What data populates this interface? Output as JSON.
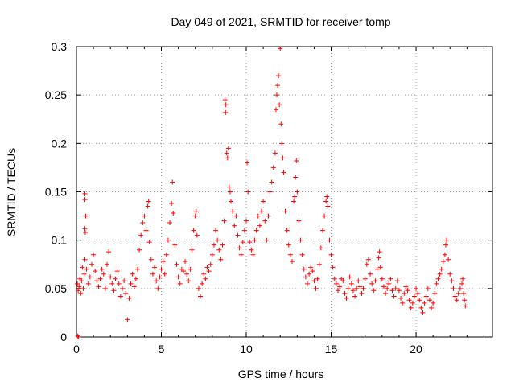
{
  "chart_data": {
    "type": "scatter",
    "title": "Day 049 of 2021, SRMTID for receiver tomp",
    "xlabel": "GPS time / hours",
    "ylabel": "SRMTID / TECUs",
    "xlim": [
      0,
      24.5
    ],
    "ylim": [
      0,
      0.3
    ],
    "x_ticks": [
      0,
      5,
      10,
      15,
      20
    ],
    "x_tick_labels": [
      "0",
      "5",
      "10",
      "15",
      "20"
    ],
    "y_ticks": [
      0,
      0.05,
      0.1,
      0.15,
      0.2,
      0.25,
      0.3
    ],
    "y_tick_labels": [
      "0",
      "0.05",
      "0.1",
      "0.15",
      "0.2",
      "0.25",
      "0.3"
    ],
    "grid": true,
    "marker": "+",
    "color": "#ff0000",
    "series": [
      {
        "name": "SRMTID",
        "points": [
          [
            0.05,
            0.055
          ],
          [
            0.1,
            0.048
          ],
          [
            0.15,
            0.052
          ],
          [
            0.2,
            0.06
          ],
          [
            0.25,
            0.045
          ],
          [
            0.3,
            0.058
          ],
          [
            0.35,
            0.072
          ],
          [
            0.4,
            0.05
          ],
          [
            0.45,
            0.065
          ],
          [
            0.5,
            0.08
          ],
          [
            0.5,
            0.148
          ],
          [
            0.5,
            0.142
          ],
          [
            0.55,
            0.125
          ],
          [
            0.5,
            0.112
          ],
          [
            0.52,
            0.108
          ],
          [
            0.6,
            0.07
          ],
          [
            0.7,
            0.055
          ],
          [
            0.8,
            0.062
          ],
          [
            0.9,
            0.075
          ],
          [
            1.0,
            0.085
          ],
          [
            1.1,
            0.068
          ],
          [
            1.2,
            0.058
          ],
          [
            1.3,
            0.052
          ],
          [
            1.4,
            0.06
          ],
          [
            1.5,
            0.07
          ],
          [
            1.6,
            0.065
          ],
          [
            1.7,
            0.05
          ],
          [
            1.8,
            0.075
          ],
          [
            1.9,
            0.088
          ],
          [
            2.0,
            0.062
          ],
          [
            2.1,
            0.055
          ],
          [
            2.2,
            0.048
          ],
          [
            2.3,
            0.06
          ],
          [
            2.4,
            0.068
          ],
          [
            2.5,
            0.055
          ],
          [
            2.6,
            0.042
          ],
          [
            2.7,
            0.05
          ],
          [
            2.8,
            0.058
          ],
          [
            2.9,
            0.045
          ],
          [
            3.0,
            0.018
          ],
          [
            3.1,
            0.04
          ],
          [
            3.2,
            0.055
          ],
          [
            3.3,
            0.065
          ],
          [
            3.4,
            0.052
          ],
          [
            3.5,
            0.06
          ],
          [
            3.6,
            0.07
          ],
          [
            3.7,
            0.09
          ],
          [
            3.8,
            0.105
          ],
          [
            3.9,
            0.118
          ],
          [
            4.0,
            0.125
          ],
          [
            4.1,
            0.11
          ],
          [
            4.2,
            0.135
          ],
          [
            4.25,
            0.14
          ],
          [
            4.3,
            0.098
          ],
          [
            4.4,
            0.08
          ],
          [
            4.5,
            0.065
          ],
          [
            4.6,
            0.072
          ],
          [
            4.7,
            0.058
          ],
          [
            4.8,
            0.05
          ],
          [
            4.9,
            0.062
          ],
          [
            5.0,
            0.07
          ],
          [
            5.1,
            0.078
          ],
          [
            5.2,
            0.065
          ],
          [
            5.3,
            0.085
          ],
          [
            5.4,
            0.1
          ],
          [
            5.5,
            0.118
          ],
          [
            5.6,
            0.138
          ],
          [
            5.65,
            0.16
          ],
          [
            5.7,
            0.128
          ],
          [
            5.8,
            0.095
          ],
          [
            5.9,
            0.075
          ],
          [
            6.0,
            0.062
          ],
          [
            6.1,
            0.055
          ],
          [
            6.2,
            0.07
          ],
          [
            6.3,
            0.068
          ],
          [
            6.4,
            0.078
          ],
          [
            6.5,
            0.065
          ],
          [
            6.6,
            0.058
          ],
          [
            6.7,
            0.07
          ],
          [
            6.8,
            0.09
          ],
          [
            6.9,
            0.11
          ],
          [
            7.0,
            0.125
          ],
          [
            7.05,
            0.13
          ],
          [
            7.1,
            0.105
          ],
          [
            7.2,
            0.05
          ],
          [
            7.3,
            0.042
          ],
          [
            7.4,
            0.055
          ],
          [
            7.5,
            0.065
          ],
          [
            7.6,
            0.06
          ],
          [
            7.7,
            0.072
          ],
          [
            7.8,
            0.068
          ],
          [
            7.9,
            0.075
          ],
          [
            8.0,
            0.085
          ],
          [
            8.1,
            0.095
          ],
          [
            8.2,
            0.11
          ],
          [
            8.3,
            0.1
          ],
          [
            8.4,
            0.09
          ],
          [
            8.5,
            0.08
          ],
          [
            8.6,
            0.095
          ],
          [
            8.7,
            0.12
          ],
          [
            8.75,
            0.245
          ],
          [
            8.78,
            0.232
          ],
          [
            8.8,
            0.24
          ],
          [
            8.85,
            0.19
          ],
          [
            8.9,
            0.185
          ],
          [
            8.95,
            0.195
          ],
          [
            9.0,
            0.155
          ],
          [
            9.05,
            0.15
          ],
          [
            9.1,
            0.14
          ],
          [
            9.2,
            0.13
          ],
          [
            9.3,
            0.115
          ],
          [
            9.4,
            0.125
          ],
          [
            9.5,
            0.105
          ],
          [
            9.6,
            0.092
          ],
          [
            9.7,
            0.085
          ],
          [
            9.8,
            0.098
          ],
          [
            9.9,
            0.11
          ],
          [
            10.0,
            0.12
          ],
          [
            10.05,
            0.18
          ],
          [
            10.1,
            0.15
          ],
          [
            10.2,
            0.098
          ],
          [
            10.3,
            0.09
          ],
          [
            10.4,
            0.085
          ],
          [
            10.5,
            0.1
          ],
          [
            10.6,
            0.11
          ],
          [
            10.7,
            0.125
          ],
          [
            10.8,
            0.115
          ],
          [
            10.9,
            0.13
          ],
          [
            11.0,
            0.14
          ],
          [
            11.1,
            0.12
          ],
          [
            11.2,
            0.1
          ],
          [
            11.3,
            0.125
          ],
          [
            11.4,
            0.15
          ],
          [
            11.5,
            0.16
          ],
          [
            11.6,
            0.175
          ],
          [
            11.7,
            0.19
          ],
          [
            11.75,
            0.235
          ],
          [
            11.8,
            0.25
          ],
          [
            11.85,
            0.26
          ],
          [
            11.9,
            0.27
          ],
          [
            11.95,
            0.24
          ],
          [
            12.0,
            0.298
          ],
          [
            12.05,
            0.22
          ],
          [
            12.1,
            0.2
          ],
          [
            12.15,
            0.185
          ],
          [
            12.2,
            0.17
          ],
          [
            12.3,
            0.13
          ],
          [
            12.4,
            0.11
          ],
          [
            12.5,
            0.095
          ],
          [
            12.6,
            0.085
          ],
          [
            12.7,
            0.078
          ],
          [
            12.8,
            0.14
          ],
          [
            12.85,
            0.145
          ],
          [
            12.9,
            0.165
          ],
          [
            12.95,
            0.182
          ],
          [
            13.0,
            0.15
          ],
          [
            13.1,
            0.12
          ],
          [
            13.2,
            0.1
          ],
          [
            13.3,
            0.085
          ],
          [
            13.4,
            0.07
          ],
          [
            13.5,
            0.062
          ],
          [
            13.6,
            0.055
          ],
          [
            13.7,
            0.065
          ],
          [
            13.8,
            0.072
          ],
          [
            13.9,
            0.068
          ],
          [
            14.0,
            0.058
          ],
          [
            14.1,
            0.05
          ],
          [
            14.2,
            0.06
          ],
          [
            14.3,
            0.075
          ],
          [
            14.4,
            0.092
          ],
          [
            14.5,
            0.11
          ],
          [
            14.6,
            0.125
          ],
          [
            14.7,
            0.14
          ],
          [
            14.75,
            0.145
          ],
          [
            14.8,
            0.135
          ],
          [
            14.9,
            0.1
          ],
          [
            15.0,
            0.085
          ],
          [
            15.1,
            0.072
          ],
          [
            15.2,
            0.06
          ],
          [
            15.3,
            0.055
          ],
          [
            15.4,
            0.048
          ],
          [
            15.5,
            0.052
          ],
          [
            15.6,
            0.06
          ],
          [
            15.7,
            0.058
          ],
          [
            15.8,
            0.045
          ],
          [
            15.9,
            0.04
          ],
          [
            16.0,
            0.05
          ],
          [
            16.1,
            0.062
          ],
          [
            16.2,
            0.055
          ],
          [
            16.3,
            0.048
          ],
          [
            16.4,
            0.042
          ],
          [
            16.5,
            0.05
          ],
          [
            16.6,
            0.058
          ],
          [
            16.7,
            0.052
          ],
          [
            16.8,
            0.045
          ],
          [
            16.9,
            0.05
          ],
          [
            17.0,
            0.06
          ],
          [
            17.1,
            0.075
          ],
          [
            17.2,
            0.08
          ],
          [
            17.3,
            0.065
          ],
          [
            17.4,
            0.055
          ],
          [
            17.5,
            0.048
          ],
          [
            17.6,
            0.058
          ],
          [
            17.7,
            0.07
          ],
          [
            17.8,
            0.082
          ],
          [
            17.85,
            0.088
          ],
          [
            17.9,
            0.072
          ],
          [
            18.0,
            0.06
          ],
          [
            18.1,
            0.052
          ],
          [
            18.2,
            0.045
          ],
          [
            18.3,
            0.05
          ],
          [
            18.4,
            0.055
          ],
          [
            18.5,
            0.06
          ],
          [
            18.6,
            0.048
          ],
          [
            18.7,
            0.042
          ],
          [
            18.8,
            0.05
          ],
          [
            18.9,
            0.058
          ],
          [
            19.0,
            0.048
          ],
          [
            19.1,
            0.04
          ],
          [
            19.2,
            0.035
          ],
          [
            19.3,
            0.045
          ],
          [
            19.4,
            0.052
          ],
          [
            19.5,
            0.048
          ],
          [
            19.6,
            0.038
          ],
          [
            19.7,
            0.03
          ],
          [
            19.8,
            0.035
          ],
          [
            19.9,
            0.042
          ],
          [
            20.0,
            0.05
          ],
          [
            20.1,
            0.045
          ],
          [
            20.2,
            0.038
          ],
          [
            20.3,
            0.03
          ],
          [
            20.4,
            0.025
          ],
          [
            20.5,
            0.035
          ],
          [
            20.6,
            0.042
          ],
          [
            20.7,
            0.05
          ],
          [
            20.8,
            0.038
          ],
          [
            20.9,
            0.03
          ],
          [
            21.0,
            0.035
          ],
          [
            21.1,
            0.045
          ],
          [
            21.2,
            0.055
          ],
          [
            21.3,
            0.06
          ],
          [
            21.4,
            0.065
          ],
          [
            21.5,
            0.07
          ],
          [
            21.6,
            0.078
          ],
          [
            21.7,
            0.085
          ],
          [
            21.75,
            0.095
          ],
          [
            21.8,
            0.1
          ],
          [
            21.9,
            0.08
          ],
          [
            22.0,
            0.065
          ],
          [
            22.1,
            0.058
          ],
          [
            22.2,
            0.05
          ],
          [
            22.3,
            0.042
          ],
          [
            22.4,
            0.038
          ],
          [
            22.5,
            0.045
          ],
          [
            22.6,
            0.05
          ],
          [
            22.7,
            0.055
          ],
          [
            22.75,
            0.06
          ],
          [
            22.8,
            0.045
          ],
          [
            22.85,
            0.038
          ],
          [
            22.9,
            0.032
          ],
          [
            0.08,
            0.001
          ],
          [
            0.12,
            0.0
          ]
        ]
      }
    ]
  }
}
